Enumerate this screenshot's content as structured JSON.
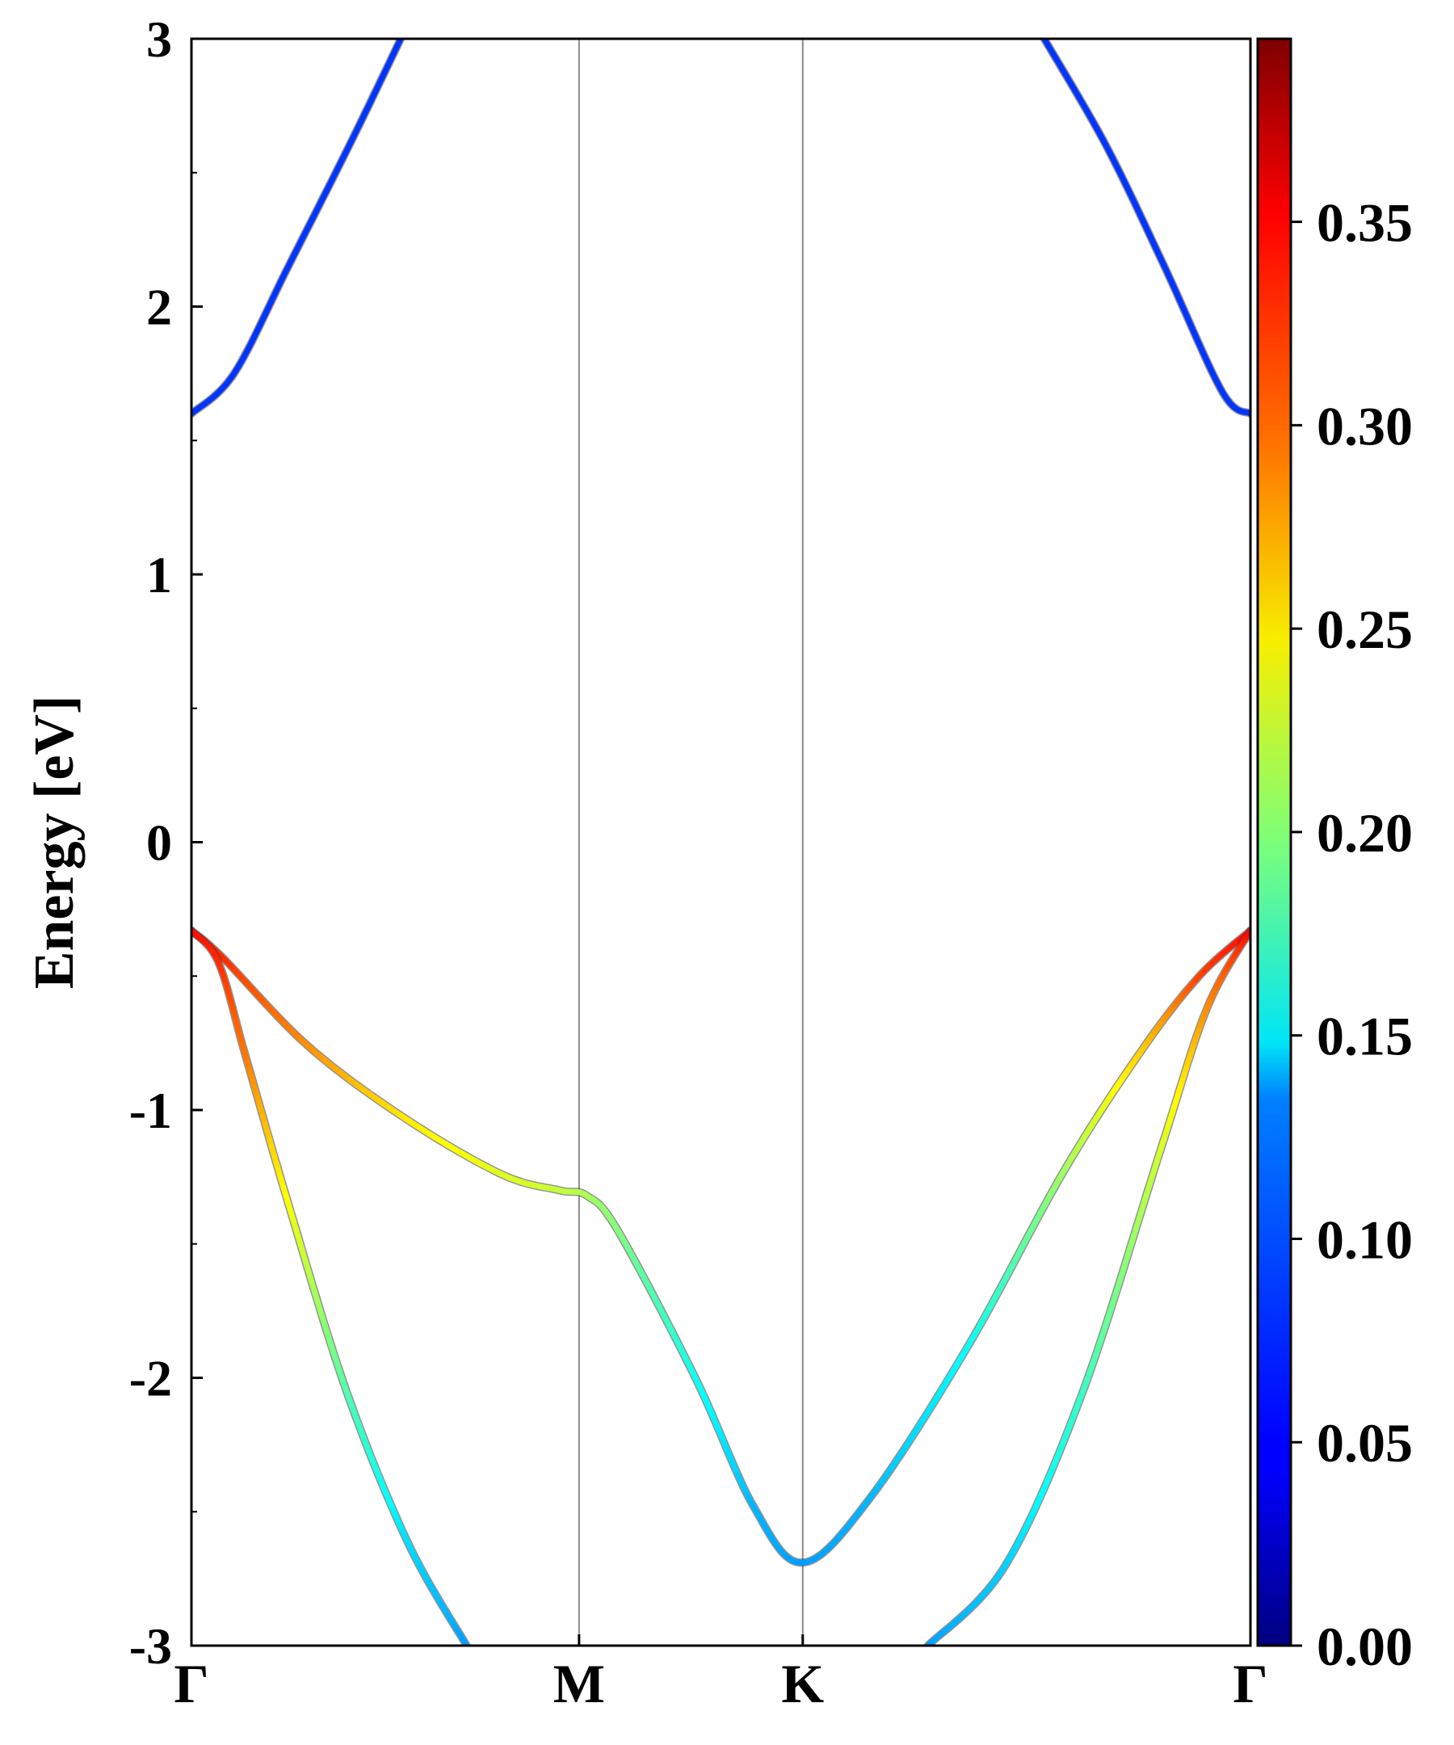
{
  "chart_data": {
    "type": "line",
    "title": "",
    "xlabel": "",
    "ylabel": "Energy [eV]",
    "ylim": [
      -3,
      3
    ],
    "yticks": [
      "-3",
      "-2",
      "-1",
      "0",
      "1",
      "2",
      "3"
    ],
    "xticks": [
      {
        "label": "Γ",
        "pos": 0
      },
      {
        "label": "M",
        "pos": 1
      },
      {
        "label": "K",
        "pos": 1.577
      },
      {
        "label": "Γ",
        "pos": 2.732
      }
    ],
    "grid": "vertical lines at high-symmetry points",
    "colorbar": {
      "colormap": "jet",
      "range": [
        0,
        0.395
      ],
      "ticks": [
        "0.00",
        "0.05",
        "0.10",
        "0.15",
        "0.20",
        "0.25",
        "0.30",
        "0.35"
      ]
    },
    "series": [
      {
        "values": [
          [
            0,
            1.6,
            0.07
          ],
          [
            0.11,
            1.75,
            0.07
          ],
          [
            0.25,
            2.15,
            0.07
          ],
          [
            0.41,
            2.61,
            0.07
          ],
          [
            0.54,
            3.0,
            0.07
          ]
        ]
      },
      {
        "values": [
          [
            2.2,
            3.0,
            0.07
          ],
          [
            2.36,
            2.6,
            0.07
          ],
          [
            2.51,
            2.15,
            0.07
          ],
          [
            2.66,
            1.68,
            0.07
          ],
          [
            2.732,
            1.6,
            0.07
          ]
        ]
      },
      {
        "values": [
          [
            0,
            -0.33,
            0.345
          ],
          [
            0.08,
            -0.43,
            0.33
          ],
          [
            0.3,
            -0.76,
            0.29
          ],
          [
            0.55,
            -1.03,
            0.255
          ],
          [
            0.8,
            -1.24,
            0.235
          ],
          [
            0.95,
            -1.3,
            0.225
          ],
          [
            1.02,
            -1.32,
            0.215
          ],
          [
            1.1,
            -1.45,
            0.2
          ],
          [
            1.3,
            -2.0,
            0.155
          ],
          [
            1.45,
            -2.48,
            0.12
          ],
          [
            1.577,
            -2.69,
            0.11
          ],
          [
            1.75,
            -2.45,
            0.12
          ],
          [
            2.0,
            -1.89,
            0.15
          ],
          [
            2.25,
            -1.23,
            0.21
          ],
          [
            2.45,
            -0.78,
            0.265
          ],
          [
            2.6,
            -0.5,
            0.32
          ],
          [
            2.732,
            -0.33,
            0.345
          ]
        ]
      },
      {
        "values": [
          [
            0,
            -0.33,
            0.345
          ],
          [
            0.07,
            -0.45,
            0.33
          ],
          [
            0.14,
            -0.8,
            0.3
          ],
          [
            0.25,
            -1.35,
            0.245
          ],
          [
            0.4,
            -2.05,
            0.18
          ],
          [
            0.56,
            -2.62,
            0.135
          ],
          [
            0.71,
            -3.0,
            0.11
          ]
        ]
      },
      {
        "values": [
          [
            1.9,
            -3.0,
            0.11
          ],
          [
            2.1,
            -2.7,
            0.13
          ],
          [
            2.3,
            -2.05,
            0.17
          ],
          [
            2.5,
            -1.15,
            0.23
          ],
          [
            2.62,
            -0.62,
            0.29
          ],
          [
            2.732,
            -0.33,
            0.345
          ]
        ]
      }
    ]
  }
}
